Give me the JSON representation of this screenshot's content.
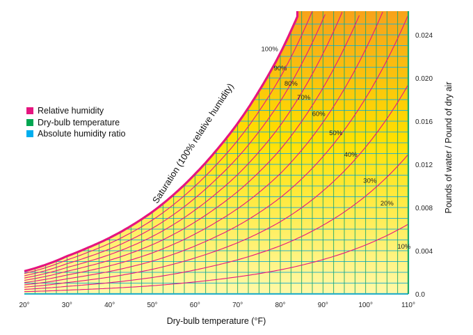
{
  "chart_data": {
    "type": "line",
    "title": "",
    "xlabel": "Dry-bulb temperature (°F)",
    "ylabel": "Pounds of water / Pound of dry air",
    "xlim": [
      20,
      110
    ],
    "ylim": [
      0.0,
      0.026
    ],
    "x_ticks": [
      20,
      30,
      40,
      50,
      60,
      70,
      80,
      90,
      100,
      110
    ],
    "x_tick_labels": [
      "20°",
      "30°",
      "40°",
      "50°",
      "60°",
      "70°",
      "80°",
      "90°",
      "100°",
      "110°"
    ],
    "y_ticks": [
      0.0,
      0.004,
      0.008,
      0.012,
      0.016,
      0.02,
      0.024
    ],
    "y_tick_labels": [
      "0.0",
      "0.004",
      "0.008",
      "0.012",
      "0.016",
      "0.020",
      "0.024"
    ],
    "grid": "dry-bulb every 2.5°F, humidity ratio every 0.001",
    "saturation_label": "Saturation (100% relative humidity)",
    "saturation_curve": {
      "x": [
        20,
        25,
        30,
        35,
        40,
        45,
        50,
        55,
        60,
        65,
        70,
        75,
        80,
        84
      ],
      "y": [
        0.0021,
        0.0027,
        0.0035,
        0.0043,
        0.0052,
        0.0063,
        0.0076,
        0.0092,
        0.0111,
        0.0133,
        0.0158,
        0.0188,
        0.0223,
        0.0257
      ]
    },
    "series": [
      {
        "name": "90%",
        "rh": 0.9
      },
      {
        "name": "80%",
        "rh": 0.8
      },
      {
        "name": "70%",
        "rh": 0.7
      },
      {
        "name": "60%",
        "rh": 0.6
      },
      {
        "name": "50%",
        "rh": 0.5
      },
      {
        "name": "40%",
        "rh": 0.4
      },
      {
        "name": "30%",
        "rh": 0.3
      },
      {
        "name": "20%",
        "rh": 0.2
      },
      {
        "name": "10%",
        "rh": 0.1
      }
    ],
    "annotations": [
      {
        "text": "100%",
        "x": 77.5,
        "y": 0.0225
      },
      {
        "text": "90%",
        "x": 80.0,
        "y": 0.0207
      },
      {
        "text": "80%",
        "x": 82.5,
        "y": 0.0193
      },
      {
        "text": "70%",
        "x": 85.5,
        "y": 0.018
      },
      {
        "text": "60%",
        "x": 89.0,
        "y": 0.0165
      },
      {
        "text": "50%",
        "x": 93.0,
        "y": 0.0147
      },
      {
        "text": "40%",
        "x": 96.5,
        "y": 0.0127
      },
      {
        "text": "30%",
        "x": 101.0,
        "y": 0.0103
      },
      {
        "text": "20%",
        "x": 105.0,
        "y": 0.0082
      },
      {
        "text": "10%",
        "x": 109.0,
        "y": 0.0042
      }
    ],
    "legend": [
      {
        "label": "Relative humidity",
        "color": "#e5157f"
      },
      {
        "label": "Dry-bulb temperature",
        "color": "#00a651"
      },
      {
        "label": "Absolute humidity ratio",
        "color": "#00aeef"
      }
    ],
    "legend_position": "left"
  },
  "colors": {
    "rh_line": "#e5157f",
    "drybulb_line": "#1aa86b",
    "ratio_line": "#2ab0c8",
    "fill_top": "#f7a21b",
    "fill_mid": "#ffe000",
    "fill_bottom": "#fff9a8"
  }
}
